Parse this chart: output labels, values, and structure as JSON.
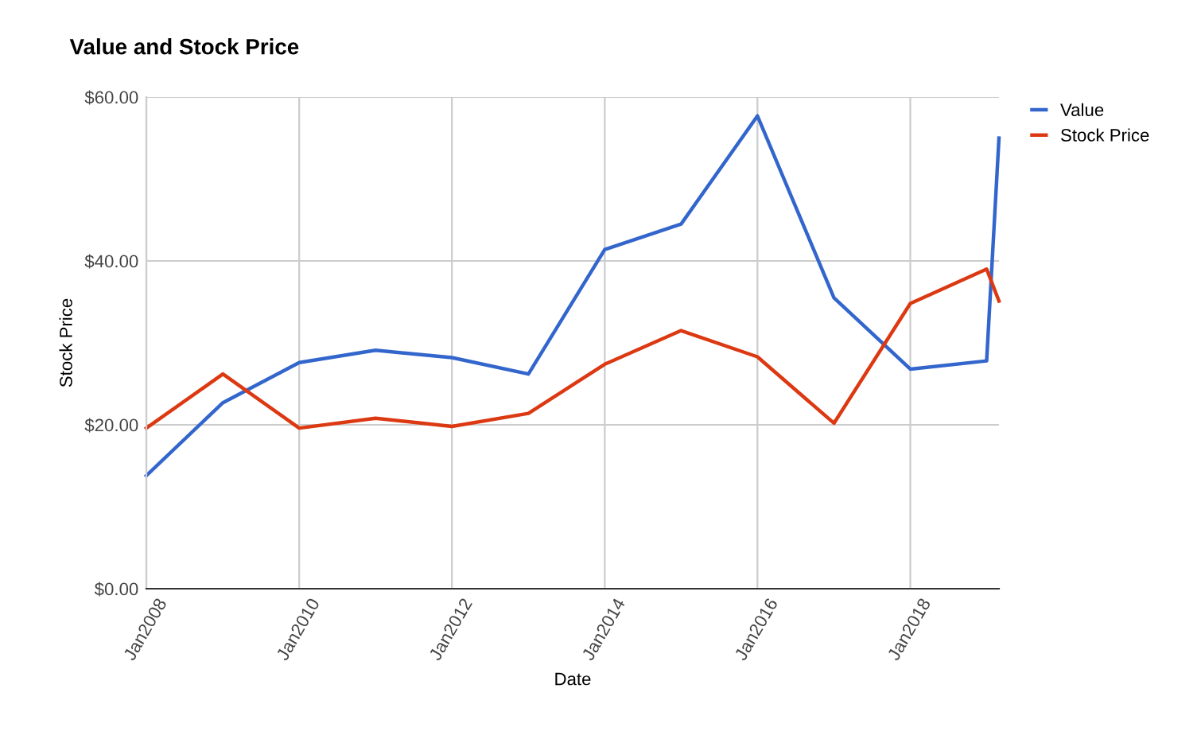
{
  "chart_data": {
    "type": "line",
    "title": "Value and Stock Price",
    "xlabel": "Date",
    "ylabel": "Stock Price",
    "x": [
      "2008-01",
      "2009-01",
      "2010-01",
      "2011-01",
      "2012-01",
      "2013-01",
      "2014-01",
      "2015-01",
      "2016-01",
      "2017-01",
      "2018-01",
      "2019-01",
      "2019-03"
    ],
    "series": [
      {
        "name": "Value",
        "color": "#3366cc",
        "values": [
          13.8,
          22.7,
          27.6,
          29.1,
          28.2,
          26.2,
          41.4,
          44.5,
          57.7,
          35.5,
          26.8,
          27.8,
          55.0
        ]
      },
      {
        "name": "Stock Price",
        "color": "#dc3912",
        "values": [
          19.6,
          26.2,
          19.6,
          20.8,
          19.8,
          21.4,
          27.4,
          31.5,
          28.3,
          20.2,
          34.8,
          39.0,
          35.1
        ]
      }
    ],
    "xlim": [
      "2008-01",
      "2019-03"
    ],
    "xticks": [
      {
        "value": "2008-01",
        "label": "Jan2008"
      },
      {
        "value": "2010-01",
        "label": "Jan2010"
      },
      {
        "value": "2012-01",
        "label": "Jan2012"
      },
      {
        "value": "2014-01",
        "label": "Jan2014"
      },
      {
        "value": "2016-01",
        "label": "Jan2016"
      },
      {
        "value": "2018-01",
        "label": "Jan2018"
      }
    ],
    "ylim": [
      0,
      60
    ],
    "yticks": [
      {
        "value": 0,
        "label": "$0.00"
      },
      {
        "value": 20,
        "label": "$20.00"
      },
      {
        "value": 40,
        "label": "$40.00"
      },
      {
        "value": 60,
        "label": "$60.00"
      }
    ],
    "grid": true,
    "legend": "top right",
    "marker": "none",
    "line_style": "solid"
  }
}
